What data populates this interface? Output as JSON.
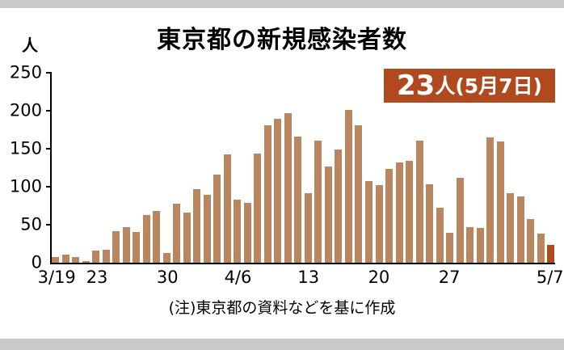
{
  "page": {
    "title": "東京都の新規感染者数",
    "note": "(注)東京都の資料などを基に作成"
  },
  "badge": {
    "count": "23",
    "suffix": "人(5月7日)"
  },
  "chart_data": {
    "type": "bar",
    "title": "東京都の新規感染者数",
    "y_unit": "人",
    "ylabel": "人",
    "xlabel": "",
    "ylim": [
      0,
      250
    ],
    "yticks": [
      0,
      50,
      100,
      150,
      200,
      250
    ],
    "grid": false,
    "legend": false,
    "categories": [
      "3/19",
      "3/20",
      "3/21",
      "3/22",
      "3/23",
      "3/24",
      "3/25",
      "3/26",
      "3/27",
      "3/28",
      "3/29",
      "3/30",
      "3/31",
      "4/1",
      "4/2",
      "4/3",
      "4/4",
      "4/5",
      "4/6",
      "4/7",
      "4/8",
      "4/9",
      "4/10",
      "4/11",
      "4/12",
      "4/13",
      "4/14",
      "4/15",
      "4/16",
      "4/17",
      "4/18",
      "4/19",
      "4/20",
      "4/21",
      "4/22",
      "4/23",
      "4/24",
      "4/25",
      "4/26",
      "4/27",
      "4/28",
      "4/29",
      "4/30",
      "5/1",
      "5/2",
      "5/3",
      "5/4",
      "5/5",
      "5/6",
      "5/7"
    ],
    "values": [
      7,
      11,
      7,
      2,
      16,
      17,
      41,
      47,
      40,
      63,
      68,
      13,
      78,
      66,
      97,
      89,
      116,
      143,
      83,
      79,
      144,
      181,
      189,
      197,
      166,
      91,
      161,
      127,
      149,
      201,
      181,
      107,
      102,
      123,
      132,
      134,
      161,
      103,
      72,
      39,
      112,
      47,
      46,
      165,
      160,
      91,
      87,
      57,
      38,
      23
    ],
    "xticks": [
      {
        "index": 0,
        "label": "3/19"
      },
      {
        "index": 4,
        "label": "23"
      },
      {
        "index": 11,
        "label": "30"
      },
      {
        "index": 18,
        "label": "4/6"
      },
      {
        "index": 25,
        "label": "13"
      },
      {
        "index": 32,
        "label": "20"
      },
      {
        "index": 39,
        "label": "27"
      },
      {
        "index": 49,
        "label": "5/7"
      }
    ],
    "bar_color": "#ba8660",
    "highlight_color": "#b04a1e",
    "highlight_index": 49,
    "annotation": "23人(5月7日)"
  },
  "colors": {
    "badge_bg": "#b04a1e",
    "frame_gray": "#c9c9c9",
    "axis": "#000000"
  }
}
